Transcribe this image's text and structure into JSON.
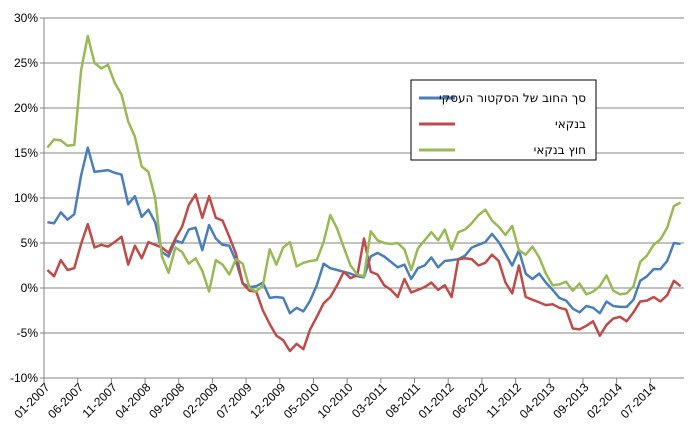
{
  "chart_data": {
    "type": "line",
    "ylim": [
      -10,
      30
    ],
    "yticks": [
      "-10%",
      "-5%",
      "0%",
      "5%",
      "10%",
      "15%",
      "20%",
      "25%",
      "30%"
    ],
    "ytick_values": [
      -10,
      -5,
      0,
      5,
      10,
      15,
      20,
      25,
      30
    ],
    "xtick_labels": [
      "01-2007",
      "06-2007",
      "11-2007",
      "04-2008",
      "09-2008",
      "02-2009",
      "07-2009",
      "12-2009",
      "05-2010",
      "10-2010",
      "03-2011",
      "08-2011",
      "01-2012",
      "06-2012",
      "11-2012",
      "04-2013",
      "09-2013",
      "02-2014",
      "07-2014"
    ],
    "x_start": "2007-01",
    "legend_position": "right",
    "grid": true,
    "series": [
      {
        "name": "סך החוב של הסקטור העסקי",
        "color": "#4a7ebb",
        "values": [
          7.3,
          7.2,
          8.4,
          7.6,
          8.2,
          12.5,
          15.6,
          12.9,
          13.0,
          13.1,
          12.8,
          12.6,
          9.3,
          10.2,
          7.9,
          8.7,
          7.3,
          4.0,
          3.5,
          5.3,
          5.0,
          6.5,
          6.7,
          4.2,
          7.0,
          5.5,
          4.8,
          4.7,
          3.0,
          0.5,
          0.1,
          0.2,
          0.6,
          -1.1,
          -1.0,
          -1.1,
          -2.8,
          -2.2,
          -2.6,
          -1.4,
          0.3,
          2.7,
          2.2,
          2.0,
          1.8,
          1.6,
          1.3,
          1.2,
          3.5,
          3.9,
          3.5,
          2.9,
          2.3,
          2.6,
          1.0,
          2.2,
          2.5,
          3.4,
          2.3,
          3.0,
          3.1,
          3.2,
          3.6,
          4.5,
          4.8,
          5.1,
          6.0,
          5.1,
          3.8,
          2.5,
          4.2,
          1.6,
          1.0,
          1.6,
          0.6,
          -0.2,
          -1.1,
          -1.4,
          -2.3,
          -2.7,
          -2.0,
          -2.2,
          -2.8,
          -1.5,
          -2.0,
          -2.1,
          -2.1,
          -1.3,
          0.8,
          1.3,
          2.1,
          2.1,
          3.0,
          5.0,
          4.9
        ]
      },
      {
        "name": "בנקאי",
        "color": "#be4b48",
        "values": [
          2.0,
          1.3,
          3.1,
          2.0,
          2.2,
          4.9,
          7.1,
          4.5,
          4.8,
          4.6,
          5.1,
          5.7,
          2.6,
          4.7,
          3.3,
          5.1,
          4.8,
          4.5,
          3.9,
          5.5,
          6.8,
          9.2,
          10.4,
          7.8,
          10.2,
          7.8,
          7.5,
          5.7,
          3.8,
          0.5,
          -0.3,
          -0.4,
          -2.5,
          -4.0,
          -5.3,
          -5.8,
          -7.0,
          -6.2,
          -6.8,
          -4.6,
          -3.2,
          -1.7,
          -1.0,
          0.3,
          1.8,
          1.1,
          1.4,
          5.5,
          1.8,
          1.5,
          0.3,
          -0.2,
          -1.0,
          1.0,
          -0.5,
          -0.2,
          0.1,
          0.6,
          -0.2,
          0.3,
          -1.0,
          3.2,
          3.3,
          3.2,
          2.5,
          2.8,
          3.7,
          3.0,
          0.6,
          -0.6,
          2.5,
          -1.0,
          -1.3,
          -1.6,
          -1.9,
          -1.8,
          -2.2,
          -2.4,
          -4.5,
          -4.6,
          -4.2,
          -3.7,
          -5.3,
          -4.1,
          -3.4,
          -3.2,
          -3.7,
          -2.7,
          -1.5,
          -1.4,
          -1.0,
          -1.5,
          -0.8,
          0.8,
          0.2
        ]
      },
      {
        "name": "חוץ בנקאי",
        "color": "#98b954",
        "values": [
          15.6,
          16.5,
          16.4,
          15.8,
          15.9,
          24.2,
          28.0,
          25.0,
          24.4,
          24.8,
          22.8,
          21.5,
          18.5,
          16.8,
          13.5,
          12.9,
          10.0,
          3.5,
          1.7,
          4.5,
          4.0,
          2.7,
          3.3,
          1.9,
          -0.4,
          3.1,
          2.6,
          1.5,
          3.2,
          2.7,
          0.0,
          -0.4,
          0.3,
          4.3,
          2.6,
          4.5,
          5.1,
          2.4,
          2.8,
          3.0,
          3.1,
          5.1,
          8.1,
          6.6,
          4.5,
          2.5,
          1.5,
          1.3,
          6.3,
          5.3,
          5.0,
          4.9,
          5.0,
          4.3,
          2.0,
          4.4,
          5.3,
          6.2,
          5.3,
          6.5,
          4.3,
          6.2,
          6.5,
          7.2,
          8.1,
          8.7,
          7.5,
          6.8,
          5.9,
          6.9,
          4.2,
          3.7,
          4.6,
          3.4,
          1.6,
          0.3,
          0.4,
          0.7,
          -0.3,
          0.5,
          -0.7,
          -0.4,
          0.2,
          1.4,
          -0.3,
          -0.7,
          -0.6,
          0.2,
          2.9,
          3.6,
          4.8,
          5.4,
          6.7,
          9.1,
          9.5
        ]
      }
    ]
  }
}
